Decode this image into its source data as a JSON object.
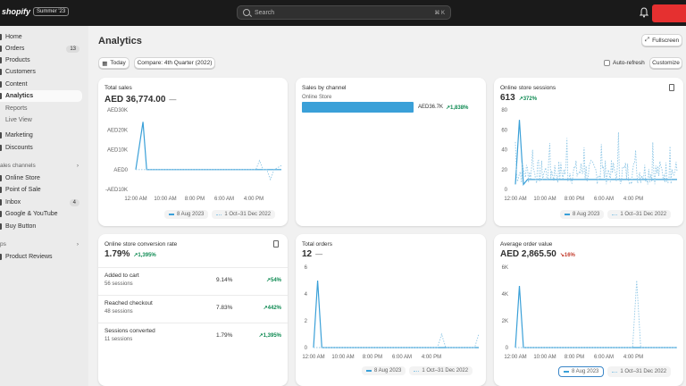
{
  "topbar": {
    "logo": "shopify",
    "edition": "Summer '23",
    "search_placeholder": "Search",
    "search_shortcut": "⌘ K"
  },
  "sidebar": {
    "items": [
      {
        "label": "Home"
      },
      {
        "label": "Orders",
        "badge": "13"
      },
      {
        "label": "Products"
      },
      {
        "label": "Customers"
      },
      {
        "label": "Content"
      },
      {
        "label": "Analytics"
      },
      {
        "label": "Reports"
      },
      {
        "label": "Live View"
      },
      {
        "label": "Marketing"
      },
      {
        "label": "Discounts"
      }
    ],
    "sales_channels_label": "ales channels",
    "channels": [
      {
        "label": "Online Store"
      },
      {
        "label": "Point of Sale"
      },
      {
        "label": "Inbox",
        "badge": "4"
      },
      {
        "label": "Google & YouTube"
      },
      {
        "label": "Buy Button"
      }
    ],
    "apps_label": "ps",
    "apps": [
      {
        "label": "Product Reviews"
      }
    ]
  },
  "page": {
    "title": "Analytics",
    "fullscreen_label": "Fullscreen",
    "today_label": "Today",
    "compare_label": "Compare: 4th Quarter (2022)",
    "auto_refresh_label": "Auto-refresh",
    "customize_label": "Customize"
  },
  "legend": {
    "current": "8 Aug 2023",
    "previous": "1 Oct–31 Dec 2022"
  },
  "colors": {
    "accent": "#3aa0d8",
    "positive": "#0e8a52",
    "negative": "#c23a2b"
  },
  "cards": {
    "total_sales": {
      "title": "Total sales",
      "value": "AED 36,774.00",
      "dash": "—"
    },
    "sales_by_channel": {
      "title": "Sales by channel",
      "channel": "Online Store",
      "amount": "AED36.7K",
      "delta": "↗1,838%"
    },
    "sessions": {
      "title": "Online store sessions",
      "value": "613",
      "delta": "↗372%"
    },
    "conversion": {
      "title": "Online store conversion rate",
      "value": "1.79%",
      "delta": "↗1,395%",
      "rows": [
        {
          "name": "Added to cart",
          "sub": "56 sessions",
          "pct": "9.14%",
          "delta": "↗54%"
        },
        {
          "name": "Reached checkout",
          "sub": "48 sessions",
          "pct": "7.83%",
          "delta": "↗442%"
        },
        {
          "name": "Sessions converted",
          "sub": "11 sessions",
          "pct": "1.79%",
          "delta": "↗1,395%"
        }
      ]
    },
    "total_orders": {
      "title": "Total orders",
      "value": "12",
      "dash": "—"
    },
    "aov": {
      "title": "Average order value",
      "value": "AED 2,865.50",
      "delta": "↘16%"
    }
  },
  "chart_data": [
    {
      "type": "line",
      "title": "Total sales",
      "x_ticks": [
        "12:00 AM",
        "10:00 AM",
        "8:00 PM",
        "6:00 AM",
        "4:00 PM"
      ],
      "y_ticks": [
        "AED30K",
        "AED20K",
        "AED10K",
        "AED0",
        "-AED10K"
      ],
      "ylim": [
        -10000,
        30000
      ],
      "series": [
        {
          "name": "8 Aug 2023",
          "points": [
            [
              0,
              0
            ],
            [
              2,
              24000
            ],
            [
              3,
              0
            ],
            [
              40,
              0
            ]
          ]
        },
        {
          "name": "1 Oct–31 Dec 2022",
          "points": [
            [
              0,
              0
            ],
            [
              33,
              0
            ],
            [
              34,
              4500
            ],
            [
              35,
              0
            ],
            [
              36,
              0
            ],
            [
              37,
              -5000
            ],
            [
              38,
              0
            ],
            [
              40,
              2000
            ]
          ]
        }
      ]
    },
    {
      "type": "bar",
      "title": "Sales by channel",
      "categories": [
        "Online Store"
      ],
      "values": [
        36700
      ]
    },
    {
      "type": "line",
      "title": "Online store sessions",
      "x_ticks": [
        "12:00 AM",
        "10:00 AM",
        "8:00 PM",
        "6:00 AM",
        "4:00 PM"
      ],
      "y_ticks": [
        "80",
        "60",
        "40",
        "20",
        "0"
      ],
      "ylim": [
        0,
        80
      ],
      "series": [
        {
          "name": "8 Aug 2023",
          "points": [
            [
              0,
              5
            ],
            [
              1,
              70
            ],
            [
              2,
              5
            ],
            [
              3,
              10
            ],
            [
              40,
              10
            ]
          ]
        },
        {
          "name": "1 Oct–31 Dec 2022",
          "noise": [
            5,
            60
          ]
        }
      ]
    },
    {
      "type": "line",
      "title": "Total orders",
      "x_ticks": [
        "12:00 AM",
        "10:00 AM",
        "8:00 PM",
        "6:00 AM",
        "4:00 PM"
      ],
      "y_ticks": [
        "6",
        "4",
        "2",
        "0"
      ],
      "ylim": [
        0,
        6
      ],
      "series": [
        {
          "name": "8 Aug 2023",
          "points": [
            [
              0,
              0
            ],
            [
              1,
              5
            ],
            [
              2,
              0
            ],
            [
              40,
              0
            ]
          ]
        },
        {
          "name": "1 Oct–31 Dec 2022",
          "points": [
            [
              0,
              0
            ],
            [
              30,
              0
            ],
            [
              31,
              1
            ],
            [
              32,
              0
            ],
            [
              39,
              0
            ],
            [
              40,
              1
            ]
          ]
        }
      ]
    },
    {
      "type": "line",
      "title": "Average order value",
      "x_ticks": [
        "12:00 AM",
        "10:00 AM",
        "8:00 PM",
        "6:00 AM",
        "4:00 PM"
      ],
      "y_ticks": [
        "6K",
        "4K",
        "2K",
        "0"
      ],
      "ylim": [
        0,
        6000
      ],
      "series": [
        {
          "name": "8 Aug 2023",
          "points": [
            [
              0,
              0
            ],
            [
              1,
              4600
            ],
            [
              2,
              0
            ],
            [
              40,
              0
            ]
          ]
        },
        {
          "name": "1 Oct–31 Dec 2022",
          "points": [
            [
              0,
              0
            ],
            [
              29,
              0
            ],
            [
              30,
              5000
            ],
            [
              31,
              0
            ],
            [
              40,
              0
            ]
          ]
        }
      ]
    }
  ]
}
